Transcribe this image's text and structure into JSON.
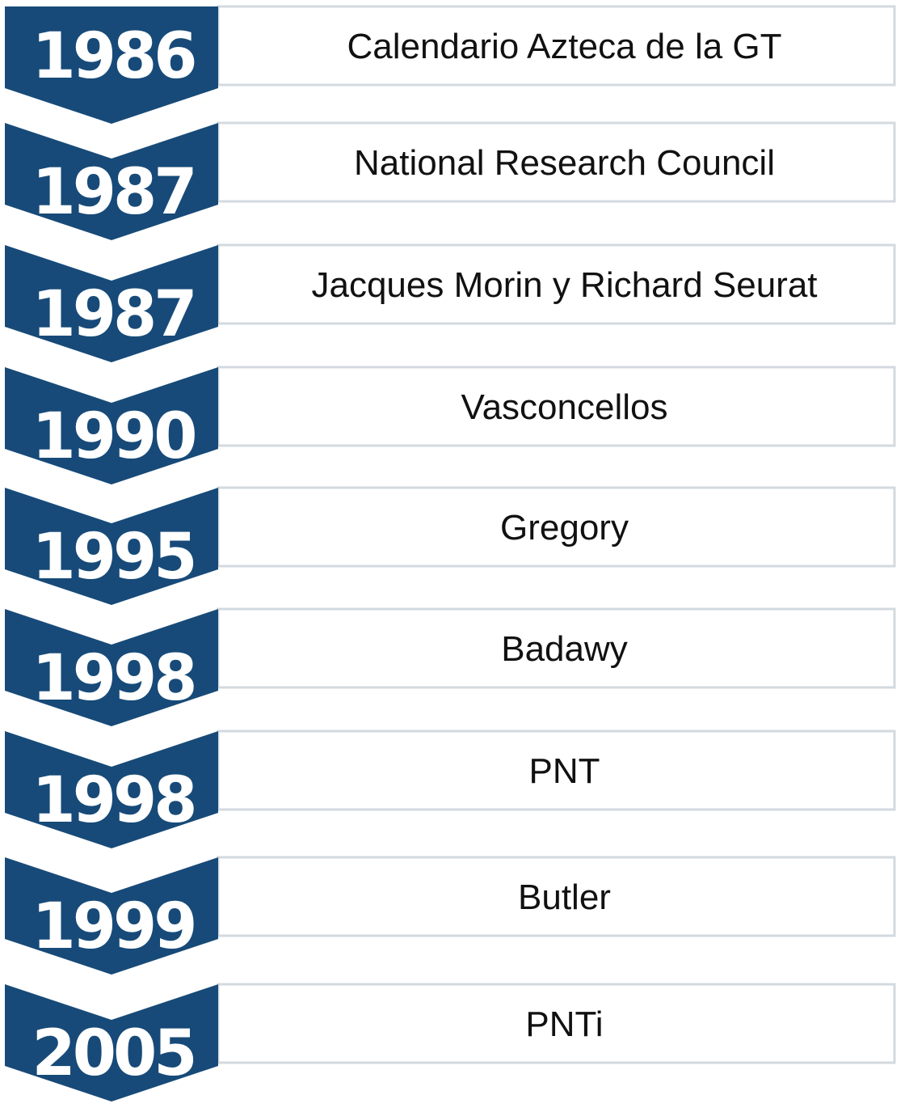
{
  "timeline": {
    "colors": {
      "chevron": "#174a78",
      "year_text": "#ffffff",
      "label_text": "#111111",
      "box_border": "#d3dadf"
    },
    "entries": [
      {
        "year": "1986",
        "label": "Calendario Azteca de la GT"
      },
      {
        "year": "1987",
        "label": "National Research Council"
      },
      {
        "year": "1987",
        "label": "Jacques Morin y Richard Seurat"
      },
      {
        "year": "1990",
        "label": "Vasconcellos"
      },
      {
        "year": "1995",
        "label": "Gregory"
      },
      {
        "year": "1998",
        "label": "Badawy"
      },
      {
        "year": "1998",
        "label": "PNT"
      },
      {
        "year": "1999",
        "label": "Butler"
      },
      {
        "year": "2005",
        "label": "PNTi"
      }
    ]
  }
}
